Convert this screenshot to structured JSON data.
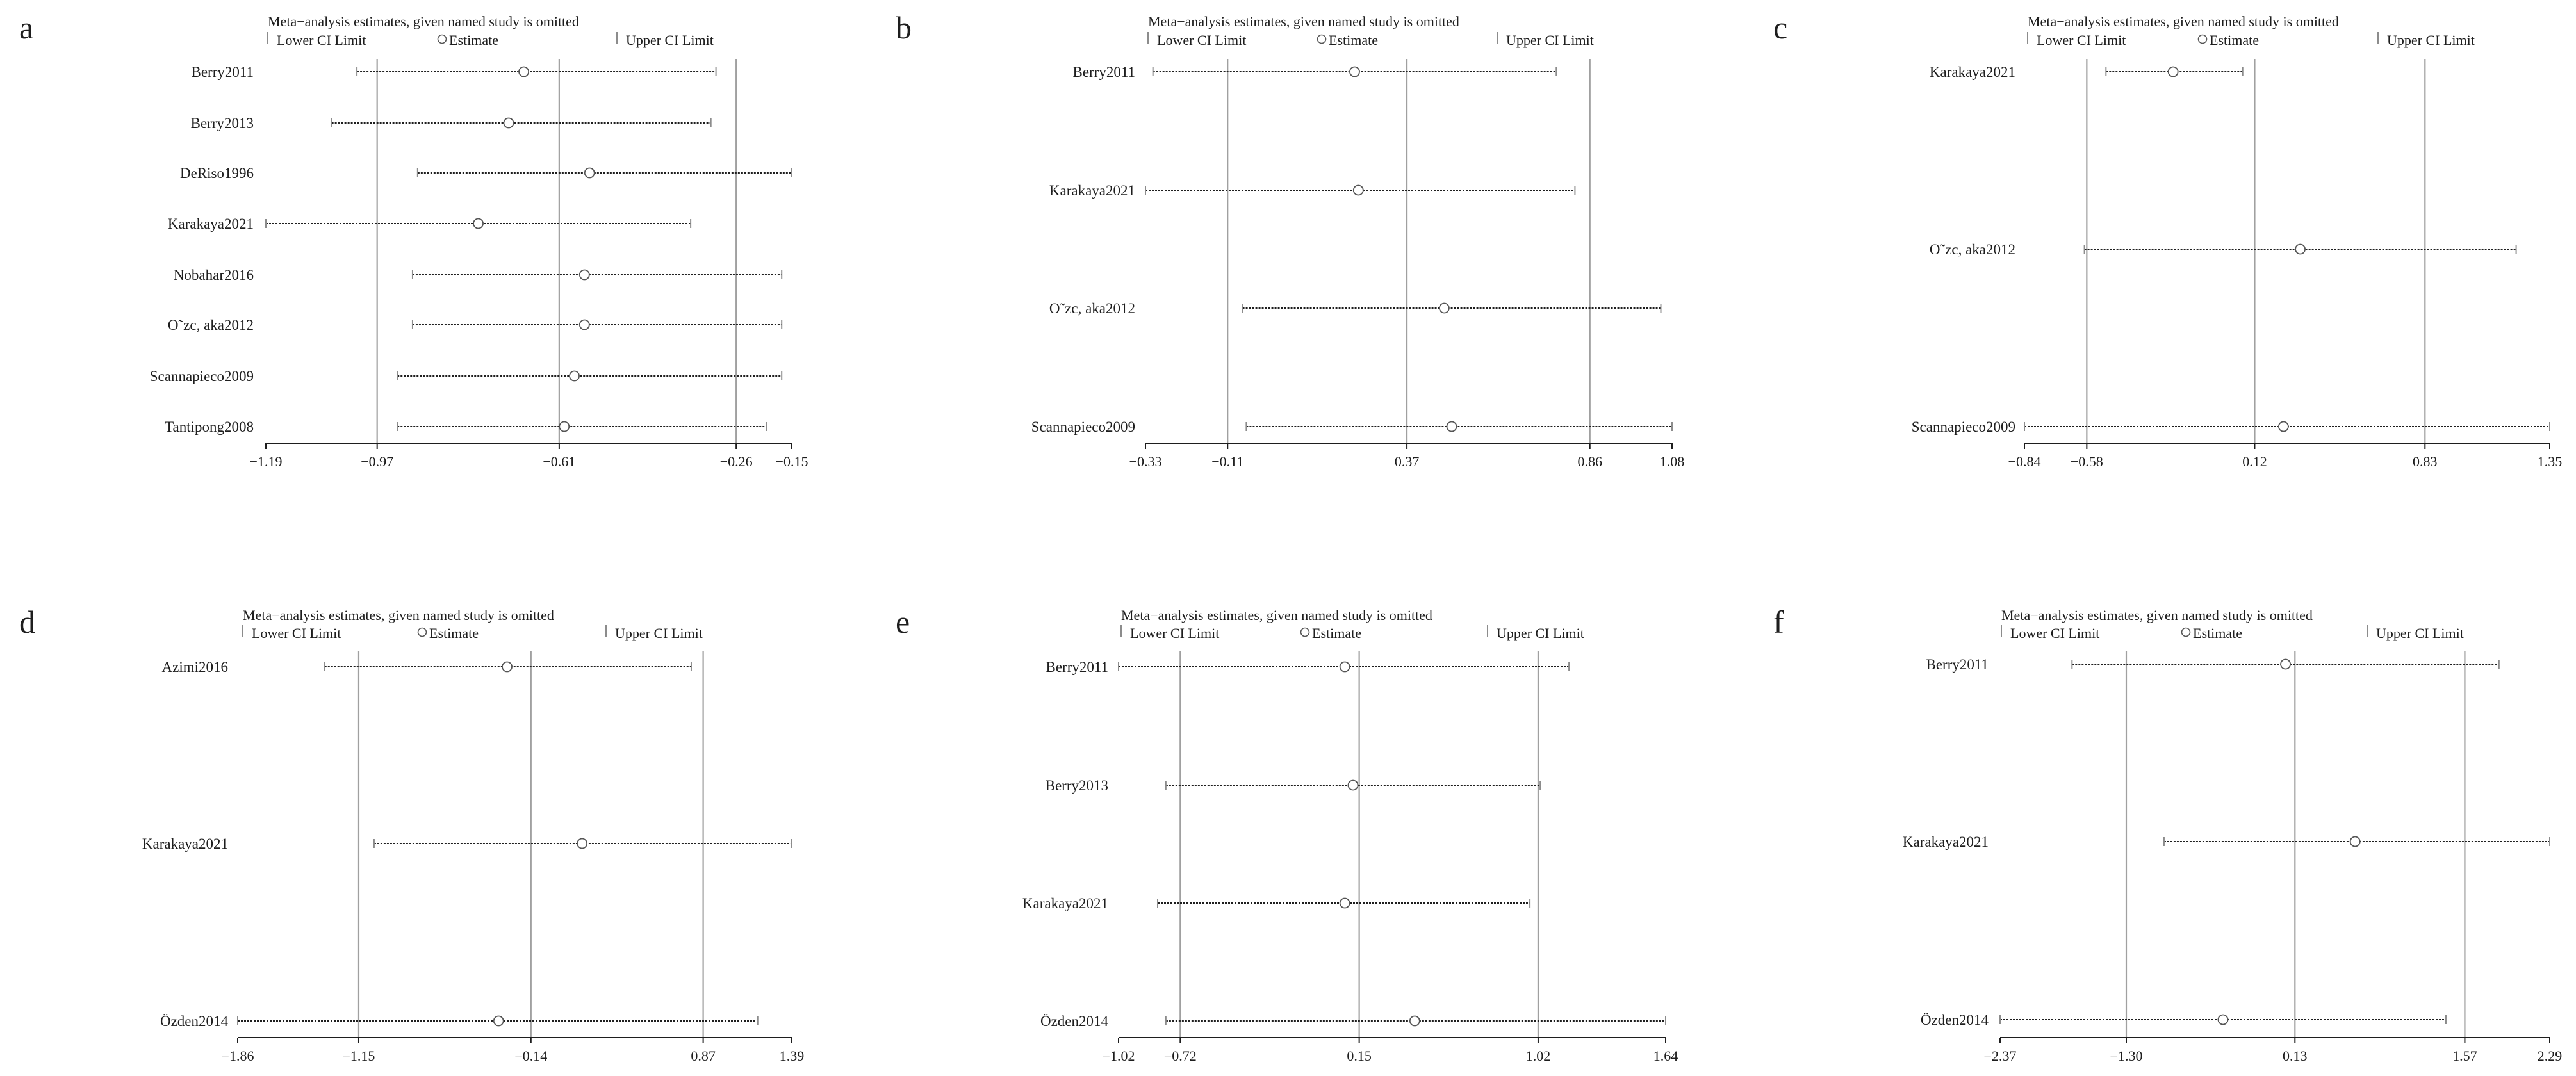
{
  "title": "Meta−analysis estimates, given named study is omitted",
  "legend": {
    "lower": "Lower CI Limit",
    "estimate": "Estimate",
    "upper": "Upper CI Limit"
  },
  "colors": {
    "ink": "#1e1e1e",
    "reference_lines": "#a0a0a0",
    "background": "#ffffff"
  },
  "chart_data": [
    {
      "panel": "a",
      "type": "forest",
      "title": "Meta−analysis estimates, given named study is omitted",
      "legend": [
        "Lower CI Limit",
        "Estimate",
        "Upper CI Limit"
      ],
      "legend_position": "top",
      "xlim": [
        -1.19,
        -0.15
      ],
      "xticks": [
        -1.19,
        -0.97,
        -0.61,
        -0.26,
        -0.15
      ],
      "xtick_labels": [
        "−1.19",
        "−0.97",
        "−0.61",
        "−0.26",
        "−0.15"
      ],
      "reference_lines": [
        -0.97,
        -0.61,
        -0.26
      ],
      "studies": [
        {
          "name": "Berry2011",
          "lower": -1.01,
          "estimate": -0.68,
          "upper": -0.3
        },
        {
          "name": "Berry2013",
          "lower": -1.06,
          "estimate": -0.71,
          "upper": -0.31
        },
        {
          "name": "DeRiso1996",
          "lower": -0.89,
          "estimate": -0.55,
          "upper": -0.15
        },
        {
          "name": "Karakaya2021",
          "lower": -1.19,
          "estimate": -0.77,
          "upper": -0.35
        },
        {
          "name": "Nobahar2016",
          "lower": -0.9,
          "estimate": -0.56,
          "upper": -0.17
        },
        {
          "name": "O˜zc, aka2012",
          "lower": -0.9,
          "estimate": -0.56,
          "upper": -0.17
        },
        {
          "name": "Scannapieco2009",
          "lower": -0.93,
          "estimate": -0.58,
          "upper": -0.17
        },
        {
          "name": "Tantipong2008",
          "lower": -0.93,
          "estimate": -0.6,
          "upper": -0.2
        }
      ]
    },
    {
      "panel": "b",
      "type": "forest",
      "title": "Meta−analysis estimates, given named study is omitted",
      "legend": [
        "Lower CI Limit",
        "Estimate",
        "Upper CI Limit"
      ],
      "legend_position": "top",
      "xlim": [
        -0.33,
        1.08
      ],
      "xticks": [
        -0.33,
        -0.11,
        0.37,
        0.86,
        1.08
      ],
      "xtick_labels": [
        "−0.33",
        "−0.11",
        "0.37",
        "0.86",
        "1.08"
      ],
      "reference_lines": [
        -0.11,
        0.37,
        0.86
      ],
      "studies": [
        {
          "name": "Berry2011",
          "lower": -0.31,
          "estimate": 0.23,
          "upper": 0.77
        },
        {
          "name": "Karakaya2021",
          "lower": -0.33,
          "estimate": 0.24,
          "upper": 0.82
        },
        {
          "name": "O˜zc, aka2012",
          "lower": -0.07,
          "estimate": 0.47,
          "upper": 1.05
        },
        {
          "name": "Scannapieco2009",
          "lower": -0.06,
          "estimate": 0.49,
          "upper": 1.08
        }
      ]
    },
    {
      "panel": "c",
      "type": "forest",
      "title": "Meta−analysis estimates, given named study is omitted",
      "legend": [
        "Lower CI Limit",
        "Estimate",
        "Upper CI Limit"
      ],
      "legend_position": "top",
      "xlim": [
        -0.84,
        1.35
      ],
      "xticks": [
        -0.84,
        -0.58,
        0.12,
        0.83,
        1.35
      ],
      "xtick_labels": [
        "−0.84",
        "−0.58",
        "0.12",
        "0.83",
        "1.35"
      ],
      "reference_lines": [
        -0.58,
        0.12,
        0.83
      ],
      "studies": [
        {
          "name": "Karakaya2021",
          "lower": -0.5,
          "estimate": -0.22,
          "upper": 0.07
        },
        {
          "name": "O˜zc, aka2012",
          "lower": -0.59,
          "estimate": 0.31,
          "upper": 1.21
        },
        {
          "name": "Scannapieco2009",
          "lower": -0.84,
          "estimate": 0.24,
          "upper": 1.35
        }
      ]
    },
    {
      "panel": "d",
      "type": "forest",
      "title": "Meta−analysis estimates, given named study is omitted",
      "legend": [
        "Lower CI Limit",
        "Estimate",
        "Upper CI Limit"
      ],
      "legend_position": "top",
      "xlim": [
        -1.86,
        1.39
      ],
      "xticks": [
        -1.86,
        -1.15,
        -0.14,
        0.87,
        1.39
      ],
      "xtick_labels": [
        "−1.86",
        "−1.15",
        "−0.14",
        "0.87",
        "1.39"
      ],
      "reference_lines": [
        -1.15,
        -0.14,
        0.87
      ],
      "studies": [
        {
          "name": "Azimi2016",
          "lower": -1.35,
          "estimate": -0.28,
          "upper": 0.8
        },
        {
          "name": "Karakaya2021",
          "lower": -1.06,
          "estimate": 0.16,
          "upper": 1.39
        },
        {
          "name": "Özden2014",
          "lower": -1.86,
          "estimate": -0.33,
          "upper": 1.19
        }
      ]
    },
    {
      "panel": "e",
      "type": "forest",
      "title": "Meta−analysis estimates, given named study is omitted",
      "legend": [
        "Lower CI Limit",
        "Estimate",
        "Upper CI Limit"
      ],
      "legend_position": "top",
      "xlim": [
        -1.02,
        1.64
      ],
      "xticks": [
        -1.02,
        -0.72,
        0.15,
        1.02,
        1.64
      ],
      "xtick_labels": [
        "−1.02",
        "−0.72",
        "0.15",
        "1.02",
        "1.64"
      ],
      "reference_lines": [
        -0.72,
        0.15,
        1.02
      ],
      "studies": [
        {
          "name": "Berry2011",
          "lower": -1.02,
          "estimate": 0.08,
          "upper": 1.17
        },
        {
          "name": "Berry2013",
          "lower": -0.79,
          "estimate": 0.12,
          "upper": 1.03
        },
        {
          "name": "Karakaya2021",
          "lower": -0.83,
          "estimate": 0.08,
          "upper": 0.98
        },
        {
          "name": "Özden2014",
          "lower": -0.79,
          "estimate": 0.42,
          "upper": 1.64
        }
      ]
    },
    {
      "panel": "f",
      "type": "forest",
      "title": "Meta−analysis estimates, given named study is omitted",
      "legend": [
        "Lower CI Limit",
        "Estimate",
        "Upper CI Limit"
      ],
      "legend_position": "top",
      "xlim": [
        -2.37,
        2.29
      ],
      "xticks": [
        -2.37,
        -1.3,
        0.13,
        1.57,
        2.29
      ],
      "xtick_labels": [
        "−2.37",
        "−1.30",
        "0.13",
        "1.57",
        "2.29"
      ],
      "reference_lines": [
        -1.3,
        0.13,
        1.57
      ],
      "studies": [
        {
          "name": "Berry2011",
          "lower": -1.76,
          "estimate": 0.05,
          "upper": 1.86
        },
        {
          "name": "Karakaya2021",
          "lower": -0.98,
          "estimate": 0.64,
          "upper": 2.29
        },
        {
          "name": "Özden2014",
          "lower": -2.37,
          "estimate": -0.48,
          "upper": 1.41
        }
      ]
    }
  ]
}
